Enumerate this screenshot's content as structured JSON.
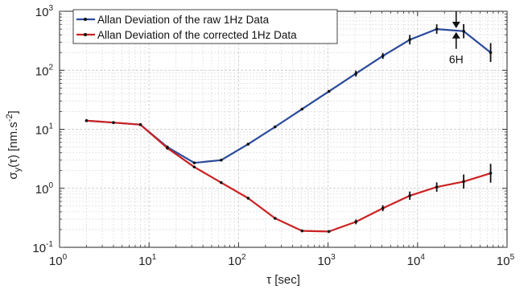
{
  "chart_data": {
    "type": "line",
    "xscale": "log",
    "yscale": "log",
    "xlim": [
      1,
      100000
    ],
    "ylim": [
      0.1,
      1000
    ],
    "grid": true,
    "legend_position": "top-left",
    "xlabel": "τ [sec]",
    "ylabel": {
      "prefix": "σ",
      "sub": "y",
      "middle": "(τ) [nm.s",
      "sup": "-2",
      "suffix": "]"
    },
    "x_ticks": [
      {
        "base": "10",
        "exp": "0"
      },
      {
        "base": "10",
        "exp": "1"
      },
      {
        "base": "10",
        "exp": "2"
      },
      {
        "base": "10",
        "exp": "3"
      },
      {
        "base": "10",
        "exp": "4"
      },
      {
        "base": "10",
        "exp": "5"
      }
    ],
    "y_ticks": [
      {
        "base": "10",
        "exp": "-1"
      },
      {
        "base": "10",
        "exp": "0"
      },
      {
        "base": "10",
        "exp": "1"
      },
      {
        "base": "10",
        "exp": "2"
      },
      {
        "base": "10",
        "exp": "3"
      }
    ],
    "series": [
      {
        "name": "Allan Deviation of the raw 1Hz Data",
        "color": "#2b4a9b",
        "x": [
          2,
          4,
          8,
          16,
          32,
          64,
          128,
          256,
          512,
          1024,
          2048,
          4096,
          8192,
          16384,
          32768,
          65536
        ],
        "y": [
          14,
          13,
          12,
          5,
          2.7,
          3.0,
          5.6,
          11,
          22,
          44,
          88,
          175,
          330,
          500,
          460,
          200
        ],
        "err": [
          0,
          0,
          0,
          0,
          0,
          0,
          0,
          0,
          0,
          0,
          0.05,
          0.05,
          0.08,
          0.08,
          0.12,
          0.16
        ]
      },
      {
        "name": "Allan Deviation of the corrected 1Hz Data",
        "color": "#cc2222",
        "x": [
          2,
          4,
          8,
          16,
          32,
          64,
          128,
          256,
          512,
          1024,
          2048,
          4096,
          8192,
          16384,
          32768,
          65536
        ],
        "y": [
          14,
          13,
          12,
          4.8,
          2.3,
          1.25,
          0.68,
          0.31,
          0.19,
          0.185,
          0.27,
          0.46,
          0.75,
          1.05,
          1.3,
          1.8
        ],
        "err": [
          0,
          0,
          0,
          0,
          0,
          0,
          0,
          0,
          0,
          0,
          0.04,
          0.05,
          0.07,
          0.08,
          0.12,
          0.16
        ]
      }
    ],
    "annotation": {
      "text": "6H",
      "x": 27000,
      "y_top": 500,
      "y_bottom": 460
    }
  }
}
